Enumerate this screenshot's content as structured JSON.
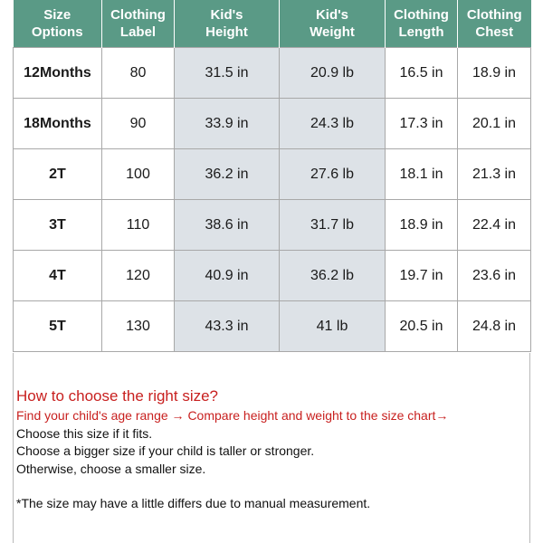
{
  "table": {
    "headers": [
      [
        "Size",
        "Options"
      ],
      [
        "Clothing",
        "Label"
      ],
      [
        "Kid's",
        "Height"
      ],
      [
        "Kid's",
        "Weight"
      ],
      [
        "Clothing",
        "Length"
      ],
      [
        "Clothing",
        "Chest"
      ]
    ],
    "rows": [
      [
        "12Months",
        "80",
        "31.5 in",
        "20.9 lb",
        "16.5 in",
        "18.9 in"
      ],
      [
        "18Months",
        "90",
        "33.9 in",
        "24.3 lb",
        "17.3 in",
        "20.1 in"
      ],
      [
        "2T",
        "100",
        "36.2 in",
        "27.6 lb",
        "18.1 in",
        "21.3 in"
      ],
      [
        "3T",
        "110",
        "38.6 in",
        "31.7 lb",
        "18.9 in",
        "22.4 in"
      ],
      [
        "4T",
        "120",
        "40.9 in",
        "36.2 lb",
        "19.7 in",
        "23.6 in"
      ],
      [
        "5T",
        "130",
        "43.3 in",
        "41 lb",
        "20.5 in",
        "24.8 in"
      ]
    ]
  },
  "guide": {
    "heading": "How to choose the right size?",
    "steps": "Find your child's age range → Compare height and weight to the size chart→",
    "line1": "Choose this size if it fits.",
    "line2": "Choose a bigger size if your child is taller or stronger.",
    "line3": "Otherwise, choose a smaller size.",
    "note": "*The size  may have a little differs due to manual measurement."
  },
  "colors": {
    "header_bg": "#5a9a86",
    "header_text": "#ffffff",
    "shaded_column": "#dde2e7",
    "accent_red": "#c8201f"
  }
}
